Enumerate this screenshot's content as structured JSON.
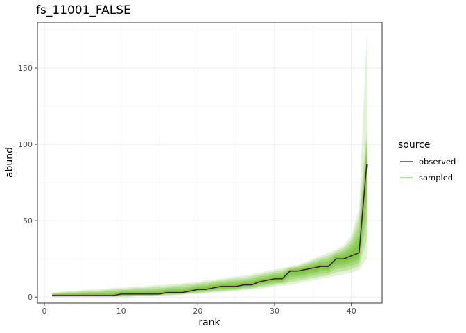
{
  "chart_data": {
    "type": "line",
    "title": "fs_11001_FALSE",
    "xlabel": "rank",
    "ylabel": "abund",
    "xlim": [
      -0.9,
      44
    ],
    "ylim": [
      -4,
      180
    ],
    "x_ticks": [
      0,
      10,
      20,
      30,
      40
    ],
    "y_ticks": [
      0,
      50,
      100,
      150
    ],
    "grid": true,
    "legend": {
      "title": "source",
      "position": "right",
      "entries": [
        {
          "label": "observed",
          "color": "#3b0f3d"
        },
        {
          "label": "sampled",
          "color": "#7cc540"
        }
      ]
    },
    "series": [
      {
        "name": "observed",
        "color": "#3b0f3d",
        "x": [
          1,
          2,
          3,
          4,
          5,
          6,
          7,
          8,
          9,
          10,
          11,
          12,
          13,
          14,
          15,
          16,
          17,
          18,
          19,
          20,
          21,
          22,
          23,
          24,
          25,
          26,
          27,
          28,
          29,
          30,
          31,
          32,
          33,
          34,
          35,
          36,
          37,
          38,
          39,
          40,
          41,
          42
        ],
        "y": [
          1,
          1,
          1,
          1,
          1,
          1,
          1,
          1,
          1,
          2,
          2,
          2,
          2,
          2,
          2,
          3,
          3,
          3,
          4,
          5,
          5,
          6,
          7,
          7,
          7,
          8,
          8,
          10,
          11,
          12,
          12,
          17,
          17,
          18,
          19,
          20,
          20,
          25,
          25,
          27,
          29,
          87
        ]
      },
      {
        "name": "sampled",
        "color": "#7cc540",
        "x": [
          1,
          2,
          3,
          4,
          5,
          6,
          7,
          8,
          9,
          10,
          11,
          12,
          13,
          14,
          15,
          16,
          17,
          18,
          19,
          20,
          21,
          22,
          23,
          24,
          25,
          26,
          27,
          28,
          29,
          30,
          31,
          32,
          33,
          34,
          35,
          36,
          37,
          38,
          39,
          40,
          41,
          42
        ],
        "y_low": [
          0,
          0,
          0,
          0,
          0,
          0,
          0,
          0,
          0,
          0,
          0,
          0.5,
          0.5,
          0.5,
          1,
          1,
          1.2,
          1.5,
          2,
          2,
          2.5,
          3,
          3,
          3.5,
          4,
          4.5,
          5,
          5.5,
          6,
          7,
          7.5,
          8,
          9,
          10,
          11,
          12,
          13,
          14,
          15,
          16,
          18,
          25
        ],
        "y_high": [
          3,
          3.5,
          4,
          4,
          4.5,
          5,
          5,
          5.5,
          6,
          6,
          6.5,
          7,
          7,
          7.5,
          8,
          8,
          8.5,
          9,
          9.5,
          10,
          11,
          11.5,
          12,
          13,
          13.5,
          14,
          15,
          16,
          17,
          18,
          19,
          20,
          21,
          23,
          25,
          27,
          29,
          31,
          34,
          40,
          58,
          115
        ],
        "y_max_sample": 172
      }
    ]
  }
}
